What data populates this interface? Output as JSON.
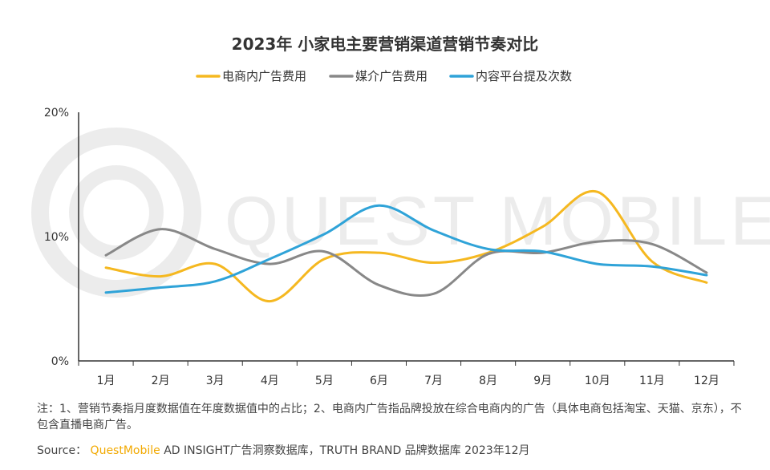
{
  "chart_data": {
    "type": "line",
    "title": "2023年 小家电主要营销渠道营销节奏对比",
    "categories": [
      "1月",
      "2月",
      "3月",
      "4月",
      "5月",
      "6月",
      "7月",
      "8月",
      "9月",
      "10月",
      "11月",
      "12月"
    ],
    "y_ticks": [
      "20%",
      "10%",
      "0%"
    ],
    "ylim": [
      0,
      20
    ],
    "grid": false,
    "legend_position": "top-center",
    "series": [
      {
        "name": "电商内广告费用",
        "color": "#f5b820",
        "values": [
          7.5,
          6.8,
          7.8,
          4.8,
          8.2,
          8.7,
          7.9,
          8.7,
          10.8,
          13.6,
          8.0,
          6.3
        ]
      },
      {
        "name": "媒介广告费用",
        "color": "#888888",
        "values": [
          8.5,
          10.6,
          9.0,
          7.8,
          8.8,
          6.1,
          5.4,
          8.6,
          8.7,
          9.6,
          9.4,
          7.1
        ]
      },
      {
        "name": "内容平台提及次数",
        "color": "#2fa3d8",
        "values": [
          5.5,
          5.9,
          6.4,
          8.2,
          10.2,
          12.5,
          10.5,
          9.0,
          8.8,
          7.8,
          7.6,
          6.9
        ]
      }
    ]
  },
  "watermark": "QUEST MOBILE",
  "note": "注：1、营销节奏指月度数据值在年度数据值中的占比；2、电商内广告指品牌投放在综合电商内的广告（具体电商包括淘宝、天猫、京东），不包含直播电商广告。",
  "source": {
    "label": "Source：",
    "brand": "QuestMobile",
    "rest": " AD INSIGHT广告洞察数据库，TRUTH BRAND 品牌数据库 2023年12月"
  }
}
